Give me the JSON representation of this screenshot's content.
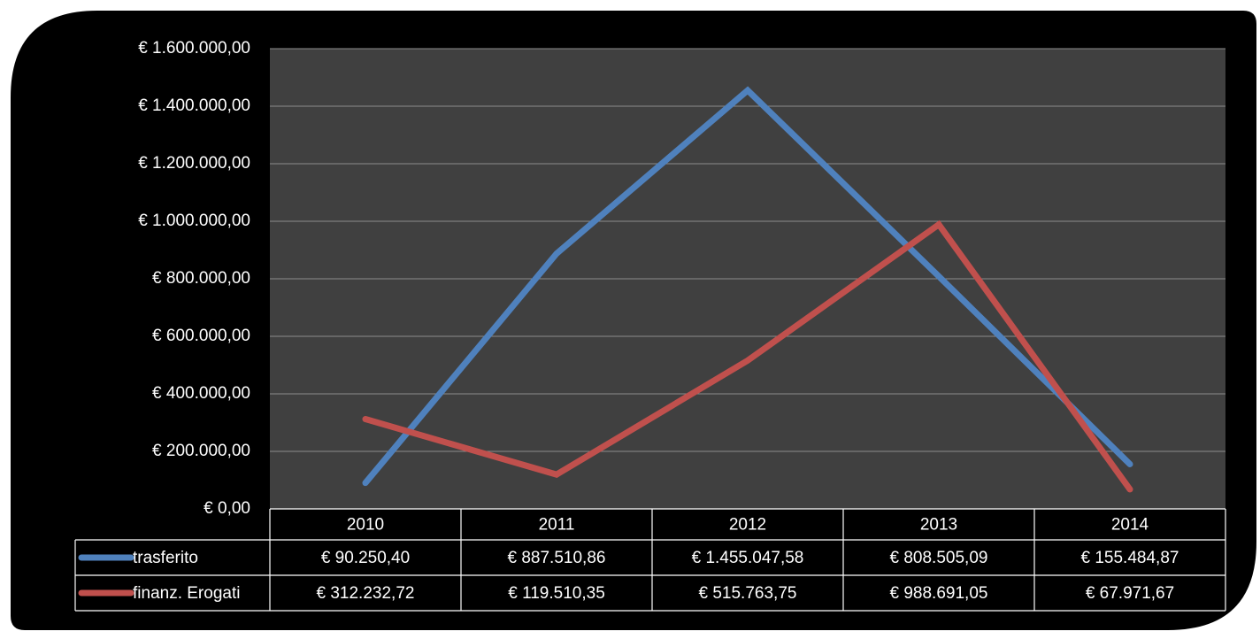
{
  "chart_data": {
    "type": "line",
    "categories": [
      "2010",
      "2011",
      "2012",
      "2013",
      "2014"
    ],
    "series": [
      {
        "name": "trasferito",
        "color": "#4f81bd",
        "values": [
          90250.4,
          887510.86,
          1455047.58,
          808505.09,
          155484.87
        ],
        "value_labels": [
          "€ 90.250,40",
          "€ 887.510,86",
          "€ 1.455.047,58",
          "€ 808.505,09",
          "€ 155.484,87"
        ]
      },
      {
        "name": "finanz. Erogati",
        "color": "#c0504d",
        "values": [
          312232.72,
          119510.35,
          515763.75,
          988691.05,
          67971.67
        ],
        "value_labels": [
          "€ 312.232,72",
          "€ 119.510,35",
          "€ 515.763,75",
          "€ 988.691,05",
          "€ 67.971,67"
        ]
      }
    ],
    "ylim": [
      0,
      1600000
    ],
    "yticks": [
      {
        "value": 0,
        "label": "€ 0,00"
      },
      {
        "value": 200000,
        "label": "€ 200.000,00"
      },
      {
        "value": 400000,
        "label": "€ 400.000,00"
      },
      {
        "value": 600000,
        "label": "€ 600.000,00"
      },
      {
        "value": 800000,
        "label": "€ 800.000,00"
      },
      {
        "value": 1000000,
        "label": "€ 1.000.000,00"
      },
      {
        "value": 1200000,
        "label": "€ 1.200.000,00"
      },
      {
        "value": 1400000,
        "label": "€ 1.400.000,00"
      },
      {
        "value": 1600000,
        "label": "€ 1.600.000,00"
      }
    ],
    "grid": true,
    "data_table": true
  }
}
